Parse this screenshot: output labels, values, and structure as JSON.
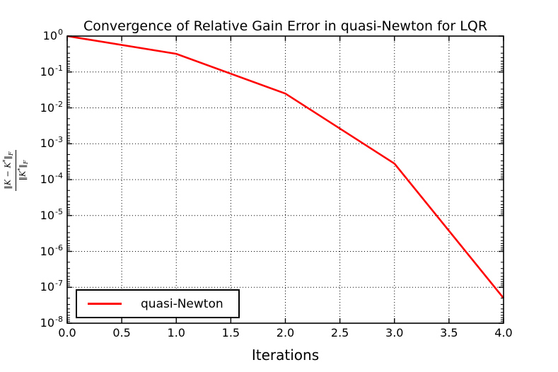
{
  "chart_data": {
    "type": "line",
    "title": "Convergence of Relative Gain Error in quasi-Newton for LQR",
    "xlabel": "Iterations",
    "ylabel_fraction": {
      "num_main": "‖K − K",
      "num_sup": "*",
      "num_close": "‖",
      "num_sub": "F",
      "den_main": "‖K",
      "den_sup": "*",
      "den_close": "‖",
      "den_sub": "F"
    },
    "x_ticks": [
      "0.0",
      "0.5",
      "1.0",
      "1.5",
      "2.0",
      "2.5",
      "3.0",
      "3.5",
      "4.0"
    ],
    "y_tick_base": "10",
    "y_tick_exponents": [
      0,
      -1,
      -2,
      -3,
      -4,
      -5,
      -6,
      -7,
      -8
    ],
    "xlim": [
      0,
      4
    ],
    "ylim": [
      1e-08,
      1
    ],
    "y_scale": "log",
    "grid": true,
    "grid_style": "dotted",
    "legend": {
      "position": "lower-left",
      "entries": [
        {
          "label": "quasi-Newton",
          "color": "#ff0000"
        }
      ]
    },
    "series": [
      {
        "name": "quasi-Newton",
        "color": "#ff0000",
        "x": [
          0,
          1,
          2,
          3,
          4
        ],
        "y": [
          1.0,
          0.32,
          0.025,
          0.00028,
          5e-08
        ]
      }
    ]
  },
  "colors": {
    "line": "#ff0000",
    "axes": "#000000",
    "grid": "#000000",
    "text": "#000000",
    "background": "#ffffff"
  }
}
